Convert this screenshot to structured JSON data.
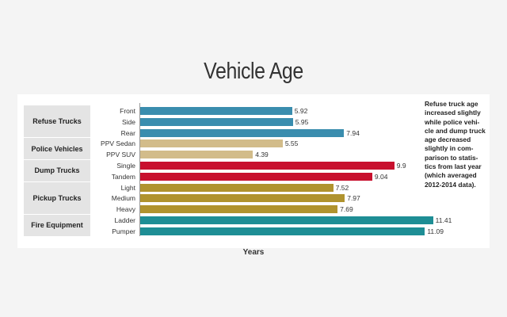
{
  "chart_data": {
    "type": "bar",
    "orientation": "horizontal",
    "title": "Vehicle Age",
    "xlabel": "Years",
    "ylabel": "",
    "xlim": [
      0,
      12.5
    ],
    "grid": false,
    "legend": "none",
    "groups": [
      {
        "name": "Refuse Trucks",
        "color": "#3a8dae",
        "items": [
          {
            "label": "Front",
            "value": 5.92,
            "text": "5.92"
          },
          {
            "label": "Side",
            "value": 5.95,
            "text": "5.95"
          },
          {
            "label": "Rear",
            "value": 7.94,
            "text": "7.94"
          }
        ]
      },
      {
        "name": "Police Vehicles",
        "color": "#d2bc8a",
        "items": [
          {
            "label": "PPV Sedan",
            "value": 5.55,
            "text": "5.55"
          },
          {
            "label": "PPV SUV",
            "value": 4.39,
            "text": "4.39"
          }
        ]
      },
      {
        "name": "Dump Trucks",
        "color": "#c8102e",
        "items": [
          {
            "label": "Single",
            "value": 9.9,
            "text": "9.9"
          },
          {
            "label": "Tandem",
            "value": 9.04,
            "text": "9.04"
          }
        ]
      },
      {
        "name": "Pickup Trucks",
        "color": "#b0932e",
        "items": [
          {
            "label": "Light",
            "value": 7.52,
            "text": "7.52"
          },
          {
            "label": "Medium",
            "value": 7.97,
            "text": "7.97"
          },
          {
            "label": "Heavy",
            "value": 7.69,
            "text": "7.69"
          }
        ]
      },
      {
        "name": "Fire Equipment",
        "color": "#1e8e95",
        "items": [
          {
            "label": "Ladder",
            "value": 11.41,
            "text": "11.41"
          },
          {
            "label": "Pumper",
            "value": 11.09,
            "text": "11.09"
          }
        ]
      }
    ],
    "annotation": "Refuse truck age increased slightly while police vehicle and dump truck age decreased slightly in comparison to statistics from last year (which averaged 2012-2014 data).",
    "annotation_lines": [
      "Refuse truck age",
      "increased slightly",
      "while police vehi-",
      "cle and dump truck",
      "age decreased",
      "slightly in com-",
      "parison to statis-",
      "tics from last year",
      "(which averaged",
      "2012-2014 data)."
    ]
  }
}
